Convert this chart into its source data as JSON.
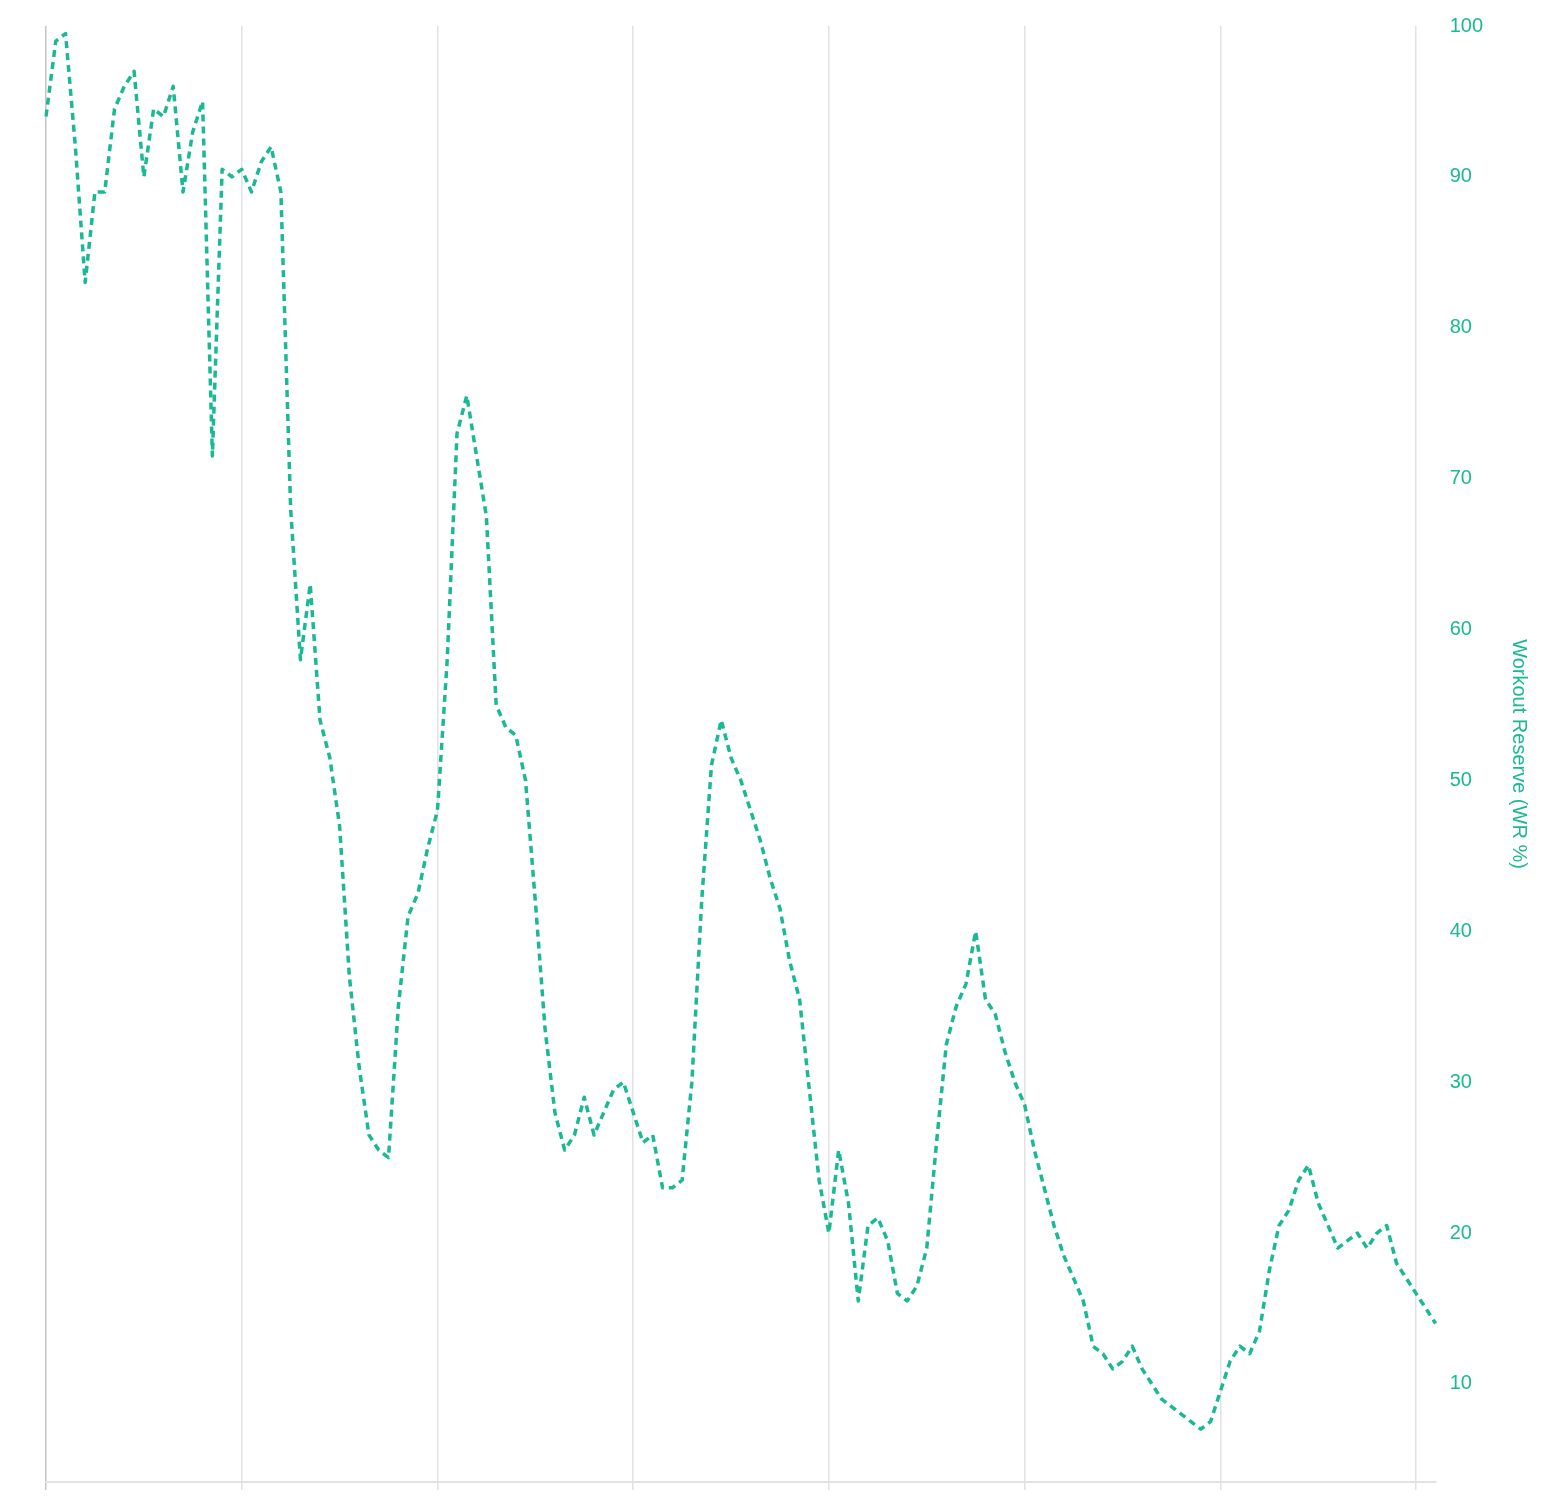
{
  "chart_data": {
    "type": "line",
    "ylabel": "Workout Reserve (WR %)",
    "categories": [
      null,
      null,
      null,
      null,
      null,
      null,
      null,
      null,
      null,
      null,
      null,
      null,
      null,
      null,
      null,
      null,
      null,
      null,
      null,
      null,
      null,
      null,
      null,
      null,
      null,
      null,
      null,
      null,
      null,
      null,
      null,
      null,
      null,
      null,
      null,
      null,
      null,
      null,
      null,
      null,
      null,
      null,
      null,
      null,
      null,
      null,
      null,
      null,
      null,
      null,
      null,
      null,
      null,
      null,
      null,
      null,
      null,
      null,
      null,
      null,
      null,
      null,
      null,
      null,
      null,
      null,
      null,
      null,
      null,
      null,
      null,
      null,
      null,
      null,
      null,
      null,
      null,
      null,
      null,
      null,
      null,
      null,
      null,
      null,
      null,
      null,
      null,
      null,
      null,
      null,
      null,
      null,
      null,
      null,
      null,
      null,
      null,
      null,
      null,
      null,
      null,
      null,
      null,
      null,
      null,
      null,
      null,
      null,
      null,
      null,
      null,
      null,
      null,
      null,
      null,
      null,
      null,
      null,
      null,
      null,
      null,
      null,
      null,
      null,
      null,
      null,
      null,
      null,
      null,
      null,
      null,
      null,
      null,
      null,
      null,
      null,
      null,
      null,
      null,
      null,
      null,
      null,
      null
    ],
    "series": [
      {
        "color": "#19b995",
        "values": [
          94,
          99,
          99.5,
          92,
          83,
          89,
          89,
          94.5,
          96,
          97,
          90,
          94.5,
          94,
          96,
          89,
          93,
          95,
          71.5,
          90.5,
          90,
          90.5,
          89,
          91,
          92,
          89,
          68,
          58,
          63,
          54,
          51.5,
          47,
          37,
          31,
          26.5,
          25.5,
          25,
          35,
          41,
          42.5,
          45.5,
          48,
          58,
          73,
          75.5,
          71.5,
          67.5,
          55,
          53.5,
          53,
          50,
          42,
          33.5,
          28,
          25.5,
          26.5,
          29,
          26.5,
          28,
          29.5,
          30,
          28,
          26,
          26.5,
          23,
          23,
          23.5,
          30,
          42,
          51,
          54,
          51.5,
          50,
          48,
          46,
          43.5,
          41.5,
          38,
          35.5,
          29.5,
          23.5,
          20,
          25.5,
          22,
          15.5,
          20.5,
          21,
          19.5,
          16,
          15.5,
          16.5,
          19,
          26,
          32.5,
          35,
          36.5,
          40,
          35.5,
          34.5,
          32,
          30,
          28.5,
          25.5,
          23,
          20.5,
          18.5,
          17,
          15.5,
          12.5,
          12,
          11,
          11.5,
          12.5,
          11,
          10,
          9,
          8.5,
          8,
          7.5,
          7,
          7.5,
          9.5,
          11.5,
          12.5,
          12,
          13.5,
          17.5,
          20.5,
          21.5,
          23.5,
          24.5,
          22,
          20.5,
          19,
          19.5,
          20,
          19,
          20,
          20.5,
          18,
          17,
          16,
          15,
          14
        ]
      }
    ],
    "ylim": [
      3.5,
      100
    ],
    "yticks": [
      10,
      20,
      30,
      40,
      50,
      60,
      70,
      80,
      90,
      100
    ],
    "grid": "x",
    "legend": false,
    "tick_labels": "y",
    "marker": "none",
    "line_style": "dashed"
  }
}
